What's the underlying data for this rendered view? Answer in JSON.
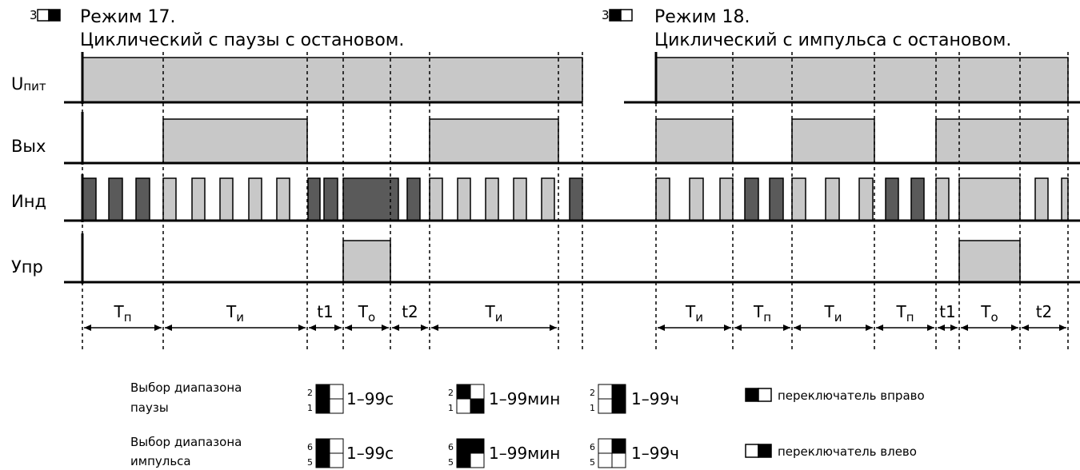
{
  "mode17": {
    "switch_number": "3",
    "title": "Режим 17.",
    "subtitle": "Циклический с паузы с остановом."
  },
  "mode18": {
    "switch_number": "3",
    "title": "Режим 18.",
    "subtitle": "Циклический с импульса с остановом."
  },
  "signals": {
    "supply_main": "U",
    "supply_sub": "пит",
    "output": "Вых",
    "indicator": "Инд",
    "control": "Упр"
  },
  "periods_mode17": [
    {
      "main": "T",
      "sub": "п"
    },
    {
      "main": "T",
      "sub": "и"
    },
    {
      "main": "t1",
      "sub": ""
    },
    {
      "main": "T",
      "sub": "о"
    },
    {
      "main": "t2",
      "sub": ""
    },
    {
      "main": "T",
      "sub": "и"
    }
  ],
  "periods_mode18": [
    {
      "main": "T",
      "sub": "и"
    },
    {
      "main": "T",
      "sub": "п"
    },
    {
      "main": "T",
      "sub": "и"
    },
    {
      "main": "T",
      "sub": "п"
    },
    {
      "main": "t1",
      "sub": ""
    },
    {
      "main": "T",
      "sub": "о"
    },
    {
      "main": "t2",
      "sub": ""
    }
  ],
  "legend": {
    "pause_range_line1": "Выбор диапазона",
    "pause_range_line2": "паузы",
    "pulse_range_line1": "Выбор диапазона",
    "pulse_range_line2": "импульса",
    "pause_switch_top": "2",
    "pause_switch_bottom": "1",
    "pulse_switch_top": "6",
    "pulse_switch_bottom": "5",
    "range_seconds": "1–99с",
    "range_minutes": "1–99мин",
    "range_hours": "1–99ч",
    "switch_right": "переключатель вправо",
    "switch_left": "переключатель влево"
  },
  "colors": {
    "fill_light": "#c8c8c8",
    "fill_dark": "#5a5a5a",
    "line": "#000000"
  }
}
